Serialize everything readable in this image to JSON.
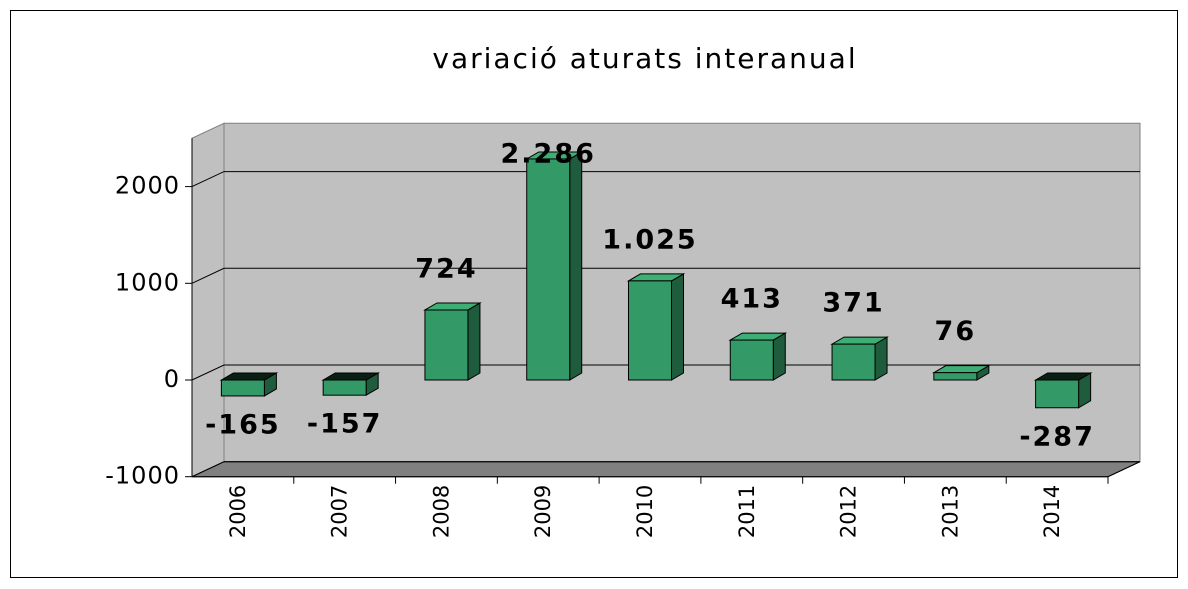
{
  "chart_data": {
    "type": "bar3d",
    "title": "variació aturats interanual",
    "categories": [
      "2006",
      "2007",
      "2008",
      "2009",
      "2010",
      "2011",
      "2012",
      "2013",
      "2014"
    ],
    "values": [
      -165,
      -157,
      724,
      2286,
      1025,
      413,
      371,
      76,
      -287
    ],
    "value_labels": [
      "-165",
      "-157",
      "724",
      "2.286",
      "1.025",
      "413",
      "371",
      "76",
      "-287"
    ],
    "color": "#339966",
    "ylim": [
      -1000,
      2500
    ],
    "yticks": [
      -1000,
      0,
      1000,
      2000
    ],
    "grid": true
  }
}
